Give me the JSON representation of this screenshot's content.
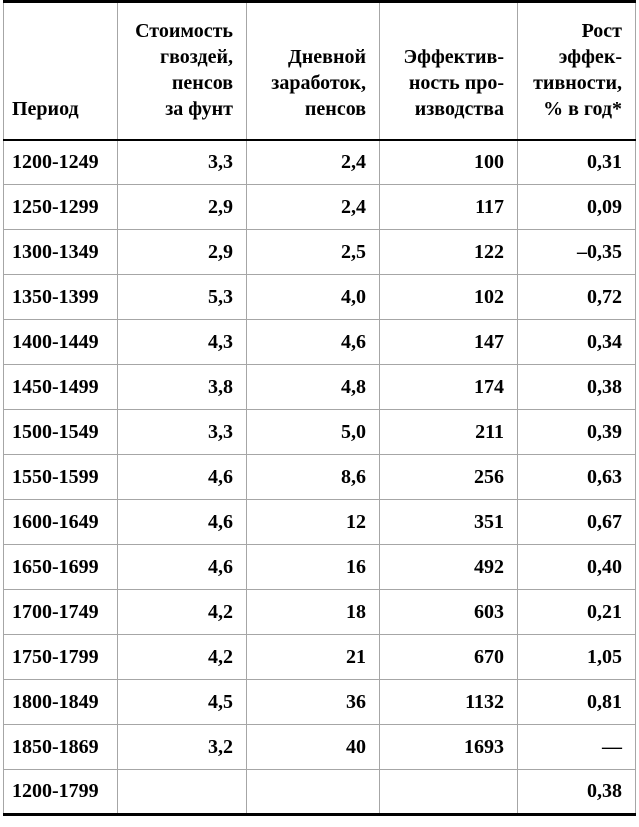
{
  "table": {
    "columns": [
      {
        "id": "period",
        "label": "Период",
        "align": "left"
      },
      {
        "id": "nail-cost",
        "label": "Стоимость\nгвоздей,\nпенсов\nза фунт",
        "align": "right"
      },
      {
        "id": "daily-wage",
        "label": "Дневной\nзаработок,\nпенсов",
        "align": "right"
      },
      {
        "id": "efficiency",
        "label": "Эффектив-\nность про-\nизводства",
        "align": "right"
      },
      {
        "id": "efficiency-growth",
        "label": "Рост\nэффек-\nтивности,\n% в год*",
        "align": "right"
      }
    ],
    "rows": [
      [
        "1200-1249",
        "3,3",
        "2,4",
        "100",
        "0,31"
      ],
      [
        "1250-1299",
        "2,9",
        "2,4",
        "117",
        "0,09"
      ],
      [
        "1300-1349",
        "2,9",
        "2,5",
        "122",
        "–0,35"
      ],
      [
        "1350-1399",
        "5,3",
        "4,0",
        "102",
        "0,72"
      ],
      [
        "1400-1449",
        "4,3",
        "4,6",
        "147",
        "0,34"
      ],
      [
        "1450-1499",
        "3,8",
        "4,8",
        "174",
        "0,38"
      ],
      [
        "1500-1549",
        "3,3",
        "5,0",
        "211",
        "0,39"
      ],
      [
        "1550-1599",
        "4,6",
        "8,6",
        "256",
        "0,63"
      ],
      [
        "1600-1649",
        "4,6",
        "12",
        "351",
        "0,67"
      ],
      [
        "1650-1699",
        "4,6",
        "16",
        "492",
        "0,40"
      ],
      [
        "1700-1749",
        "4,2",
        "18",
        "603",
        "0,21"
      ],
      [
        "1750-1799",
        "4,2",
        "21",
        "670",
        "1,05"
      ],
      [
        "1800-1849",
        "4,5",
        "36",
        "1132",
        "0,81"
      ],
      [
        "1850-1869",
        "3,2",
        "40",
        "1693",
        "—"
      ],
      [
        "1200-1799",
        "",
        "",
        "",
        "0,38"
      ]
    ]
  },
  "colors": {
    "text": "#000000",
    "border_heavy": "#000000",
    "border_light": "#a6a6a6",
    "background": "#ffffff"
  }
}
